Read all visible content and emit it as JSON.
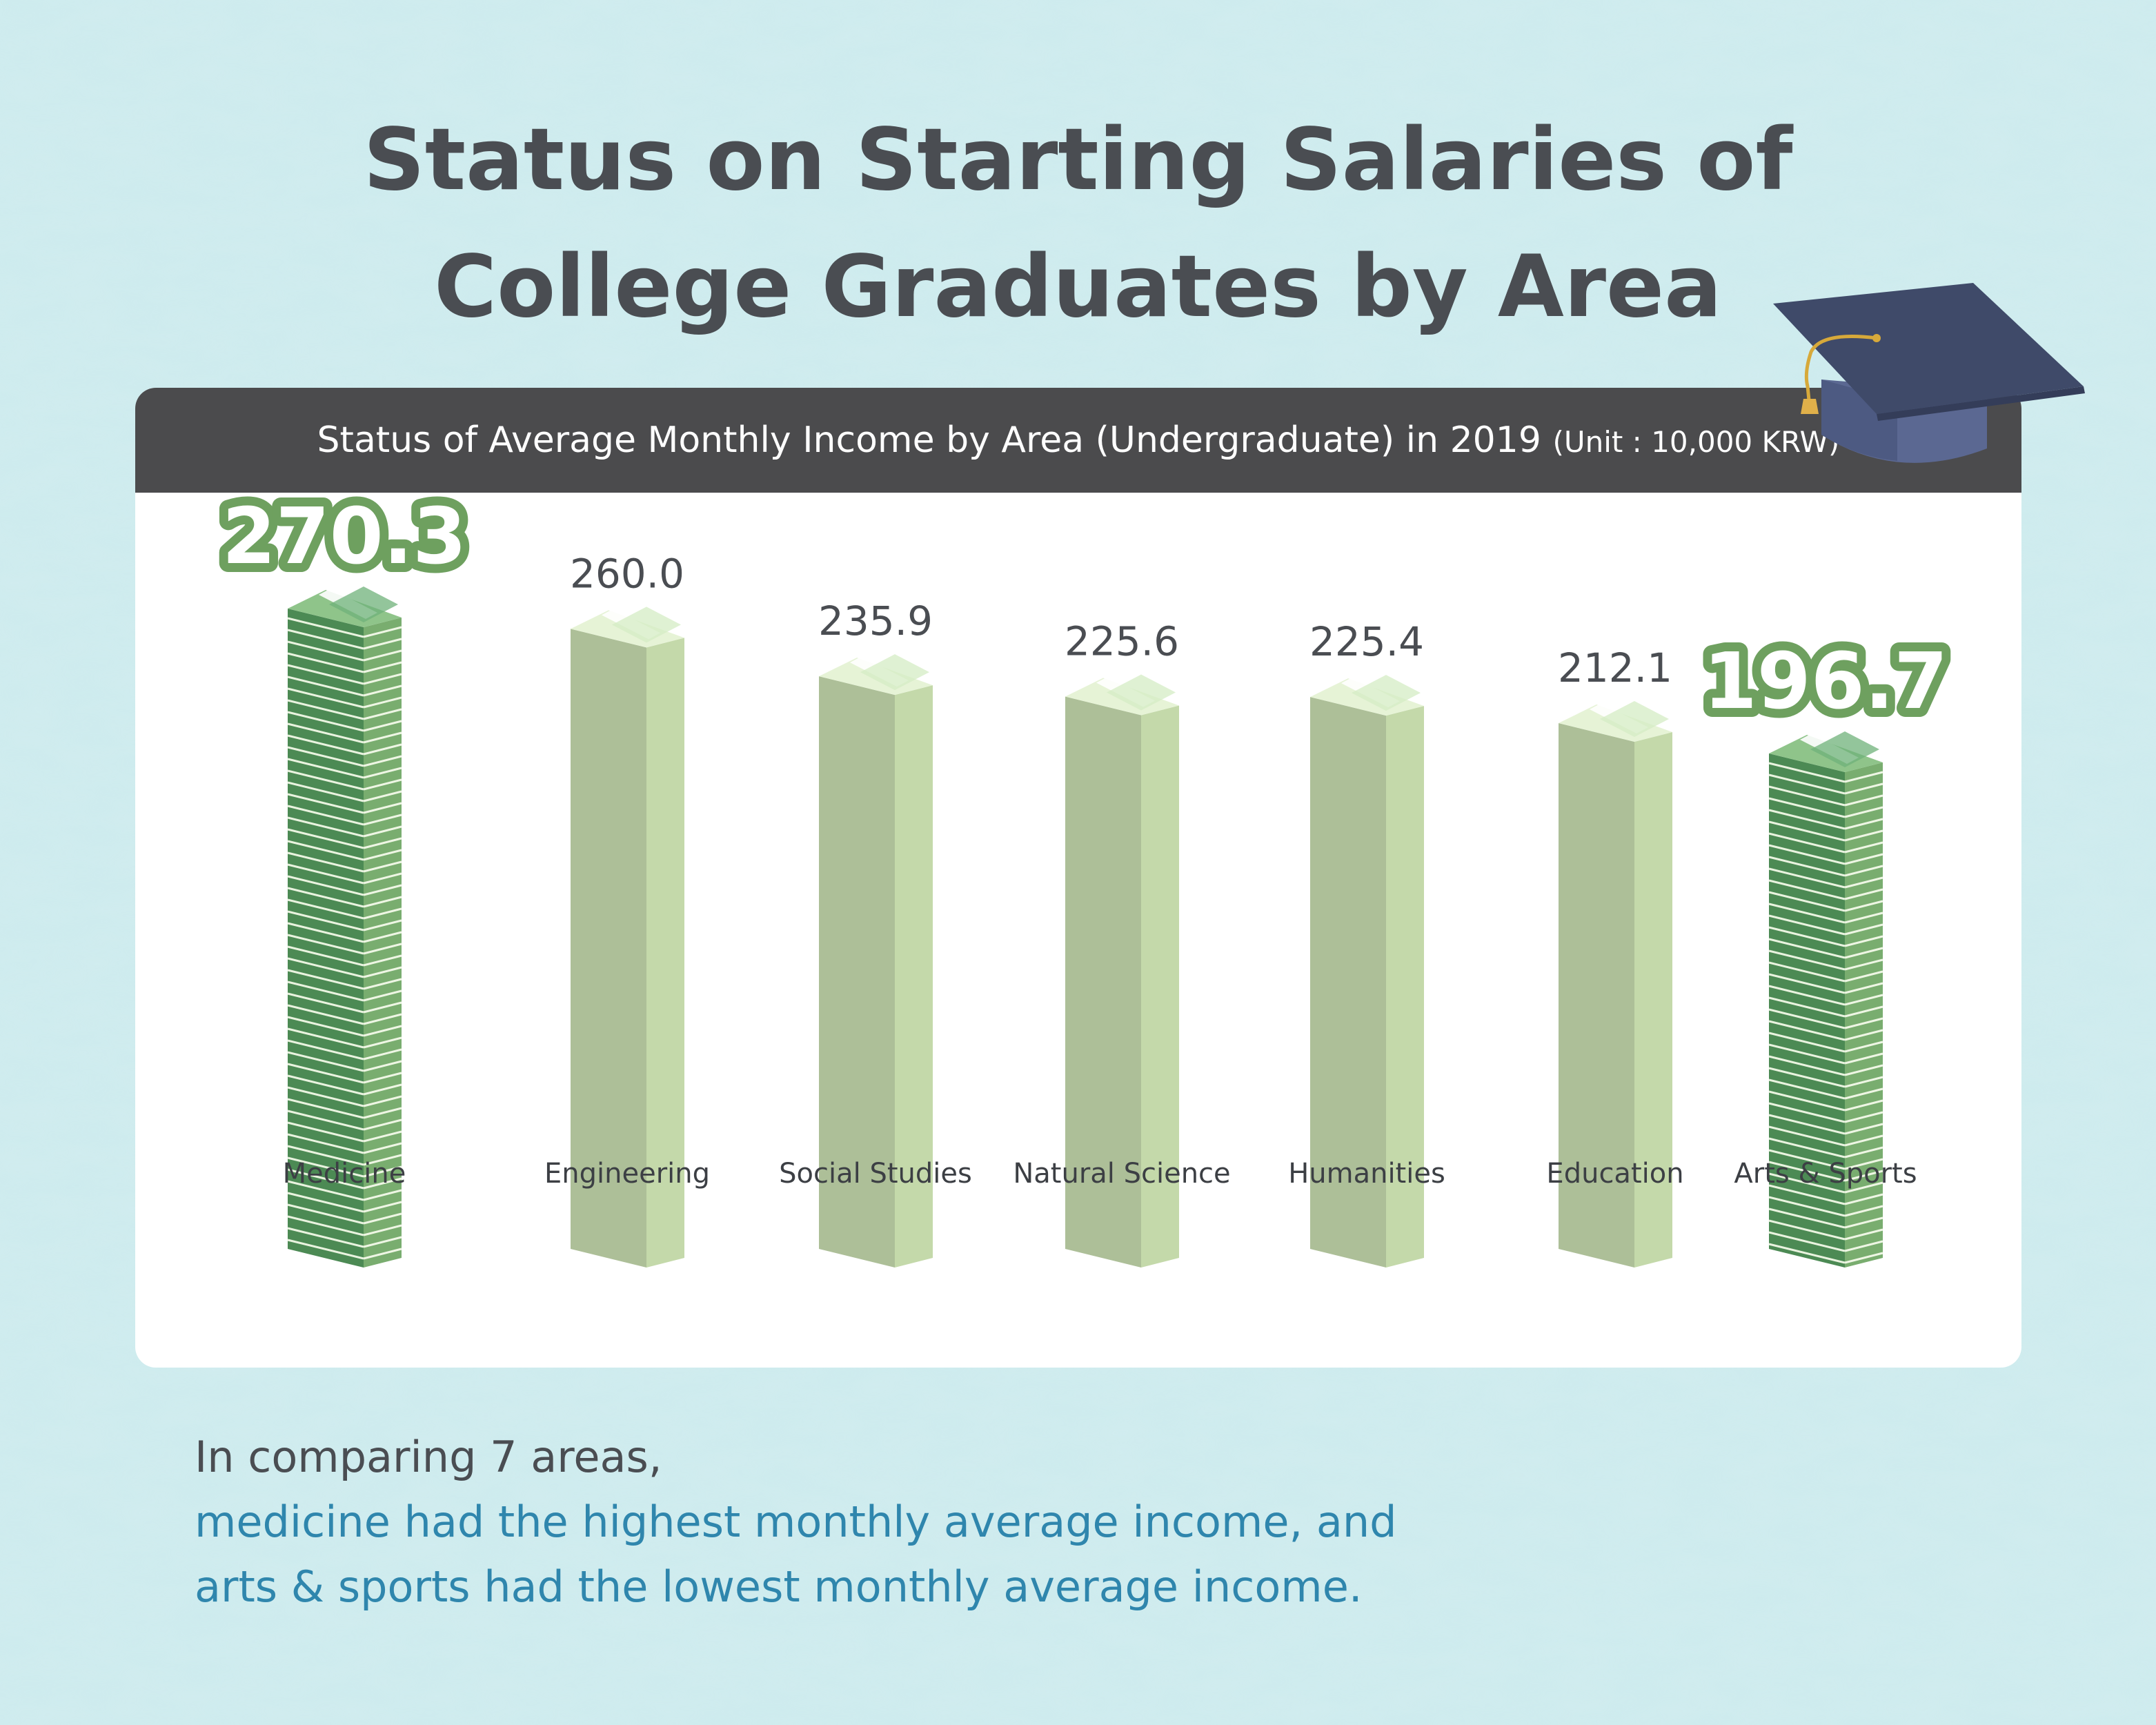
{
  "title": {
    "line1": "Status on Starting Salaries of",
    "line2": "College Graduates by Area"
  },
  "panel": {
    "header": "Status of Average Monthly Income by Area (Undergraduate) in 2019",
    "unit": "(Unit : 10,000 KRW)"
  },
  "icons": {
    "graduation_cap": "graduation-cap-icon",
    "bill_stack": "money-stack-icon"
  },
  "colors": {
    "background": "#cdebee",
    "header_bg": "#4b4b4d",
    "bar_front": "#adbf98",
    "bar_side": "#c4d9aa",
    "highlight_dark": "#4c8a54",
    "highlight_light": "#79ad6f",
    "label_outline": "#6ea05f",
    "accent_text": "#2f86ad",
    "title_text": "#4a4d52"
  },
  "chart_data": {
    "type": "bar",
    "title": "Status of Average Monthly Income by Area (Undergraduate) in 2019",
    "unit": "(Unit : 10,000 KRW)",
    "categories": [
      "Medicine",
      "Engineering",
      "Social Studies",
      "Natural Science",
      "Humanities",
      "Education",
      "Arts & Sports"
    ],
    "values": [
      270.3,
      260.0,
      235.9,
      225.6,
      225.4,
      212.1,
      196.7
    ],
    "value_labels": [
      "270.3",
      "260.0",
      "235.9",
      "225.6",
      "225.4",
      "212.1",
      "196.7"
    ],
    "highlighted": [
      "Medicine",
      "Arts & Sports"
    ]
  },
  "summary": {
    "line1": "In comparing 7 areas,",
    "line2": "medicine had the highest monthly average income, and",
    "line3": "arts & sports had the lowest monthly average income."
  }
}
